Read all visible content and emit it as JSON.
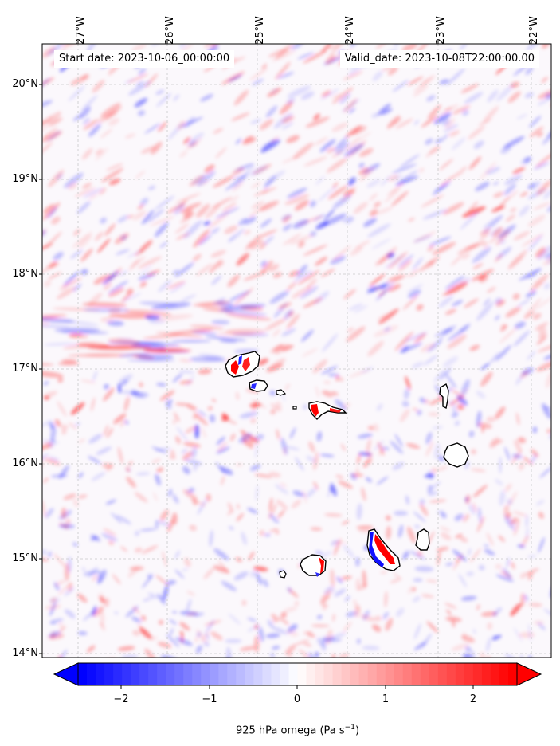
{
  "map": {
    "start_date": "Start date: 2023-10-06_00:00:00",
    "valid_date": "Valid_date: 2023-10-08T22:00:00.00",
    "lat_labels": [
      "20°N",
      "19°N",
      "18°N",
      "17°N",
      "16°N",
      "15°N",
      "14°N"
    ],
    "lon_labels": [
      "27°W",
      "26°W",
      "25°W",
      "24°W",
      "23°W",
      "22°W"
    ]
  },
  "colorbar": {
    "title_prefix": "925 hPa omega (Pa s",
    "title_exponent": "−1",
    "title_suffix": ")",
    "tick_labels": [
      "−2",
      "−1",
      "0",
      "1",
      "2"
    ],
    "negative_color": "#0000ff",
    "neutral_color": "#ffffff",
    "positive_color": "#ff0000"
  },
  "islands": [
    "santo-antao",
    "sao-vicente",
    "santa-luzia",
    "sao-nicolau",
    "sal",
    "boa-vista",
    "maio",
    "santiago",
    "fogo",
    "brava"
  ]
}
